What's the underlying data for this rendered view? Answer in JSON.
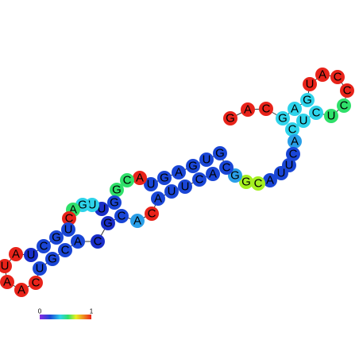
{
  "nodes": [
    {
      "label": "G",
      "color": "#e8231a"
    },
    {
      "label": "A",
      "color": "#e8231a"
    },
    {
      "label": "C",
      "color": "#e8231a"
    },
    {
      "label": "G",
      "color": "#2ed3ea"
    },
    {
      "label": "A",
      "color": "#2ed3ea"
    },
    {
      "label": "G",
      "color": "#2ed3ea"
    },
    {
      "label": "U",
      "color": "#e8231a"
    },
    {
      "label": "A",
      "color": "#e8231a"
    },
    {
      "label": "C",
      "color": "#e8231a"
    },
    {
      "label": "C",
      "color": "#e8231a"
    },
    {
      "label": "C",
      "color": "#2fe06a"
    },
    {
      "label": "U",
      "color": "#2fe06a"
    },
    {
      "label": "C",
      "color": "#2ed3ea"
    },
    {
      "label": "U",
      "color": "#2ed3ea"
    },
    {
      "label": "C",
      "color": "#2ed3ea"
    },
    {
      "label": "A",
      "color": "#2a9fe8"
    },
    {
      "label": "C",
      "color": "#1a46d6"
    },
    {
      "label": "U",
      "color": "#1a46d6"
    },
    {
      "label": "U",
      "color": "#1a46d6"
    },
    {
      "label": "A",
      "color": "#1a46d6"
    },
    {
      "label": "C",
      "color": "#a4f020"
    },
    {
      "label": "G",
      "color": "#a4f020"
    },
    {
      "label": "G",
      "color": "#2a9fe8"
    },
    {
      "label": "C",
      "color": "#1a46d6"
    },
    {
      "label": "G",
      "color": "#1a46d6"
    },
    {
      "label": "U",
      "color": "#1a46d6"
    },
    {
      "label": "G",
      "color": "#1a46d6"
    },
    {
      "label": "A",
      "color": "#1a46d6"
    },
    {
      "label": "G",
      "color": "#1a46d6"
    },
    {
      "label": "U",
      "color": "#1a46d6"
    },
    {
      "label": "A",
      "color": "#e8231a"
    },
    {
      "label": "C",
      "color": "#2fe06a"
    },
    {
      "label": "G",
      "color": "#2fe06a"
    },
    {
      "label": "G",
      "color": "#1a46d6"
    },
    {
      "label": "U",
      "color": "#1a2ec8"
    },
    {
      "label": "U",
      "color": "#2ed3ea"
    },
    {
      "label": "G",
      "color": "#2ed3ea"
    },
    {
      "label": "A",
      "color": "#2fe06a"
    },
    {
      "label": "C",
      "color": "#e8231a"
    },
    {
      "label": "U",
      "color": "#1a46d6"
    },
    {
      "label": "G",
      "color": "#1a46d6"
    },
    {
      "label": "C",
      "color": "#1a46d6"
    },
    {
      "label": "U",
      "color": "#1a2ec8"
    },
    {
      "label": "A",
      "color": "#e8231a"
    },
    {
      "label": "U",
      "color": "#e8231a"
    },
    {
      "label": "A",
      "color": "#e8231a"
    },
    {
      "label": "A",
      "color": "#e8231a"
    },
    {
      "label": "C",
      "color": "#e8231a"
    },
    {
      "label": "U",
      "color": "#1a46d6"
    },
    {
      "label": "G",
      "color": "#1a46d6"
    },
    {
      "label": "C",
      "color": "#1a46d6"
    },
    {
      "label": "A",
      "color": "#1a46d6"
    },
    {
      "label": "C",
      "color": "#1a2ec8"
    },
    {
      "label": "G",
      "color": "#1a2ec8"
    },
    {
      "label": "C",
      "color": "#1a46d6"
    },
    {
      "label": "A",
      "color": "#2a9fe8"
    },
    {
      "label": "C",
      "color": "#e8231a"
    },
    {
      "label": "A",
      "color": "#1a46d6"
    },
    {
      "label": "U",
      "color": "#1a46d6"
    },
    {
      "label": "U",
      "color": "#1a46d6"
    },
    {
      "label": "C",
      "color": "#1a46d6"
    },
    {
      "label": "A",
      "color": "#1a46d6"
    }
  ],
  "colorbar": {
    "min_label": "0",
    "max_label": "1"
  }
}
